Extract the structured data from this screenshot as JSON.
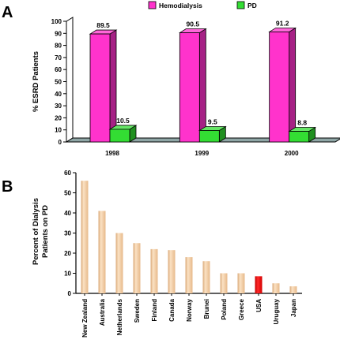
{
  "panels": {
    "a_label": "A",
    "b_label": "B"
  },
  "chart_data": [
    {
      "type": "bar",
      "panel": "A",
      "title": "",
      "xlabel": "",
      "ylabel": "% ESRD Patients",
      "ylim": [
        0,
        100
      ],
      "yticks": [
        0,
        10,
        20,
        30,
        40,
        50,
        60,
        70,
        80,
        90,
        100
      ],
      "categories": [
        "1998",
        "1999",
        "2000"
      ],
      "legend_position": "top",
      "series": [
        {
          "name": "Hemodialysis",
          "color": "#ff33cc",
          "values": [
            89.5,
            90.5,
            91.2
          ],
          "labels": [
            "89.5",
            "90.5",
            "91.2"
          ]
        },
        {
          "name": "PD",
          "color": "#33dd33",
          "values": [
            10.5,
            9.5,
            8.8
          ],
          "labels": [
            "10.5",
            "9.5",
            "8.8"
          ]
        }
      ],
      "floor_color": "#8fa6a6",
      "grid": false
    },
    {
      "type": "bar",
      "panel": "B",
      "title": "",
      "xlabel": "",
      "ylabel": "Percent of Dialysis Patients on PD",
      "ylabel_lines": [
        "Percent of Dialysis",
        "Patients on PD"
      ],
      "ylim": [
        0,
        60
      ],
      "yticks": [
        0,
        10,
        20,
        30,
        40,
        50,
        60
      ],
      "categories": [
        "New Zealand",
        "Australia",
        "Netherlands",
        "Sweden",
        "Finland",
        "Canada",
        "Norway",
        "Brunei",
        "Poland",
        "Greece",
        "USA",
        "Uruguay",
        "Japan"
      ],
      "values": [
        56,
        41,
        30,
        25,
        22,
        21.5,
        18,
        16,
        10,
        10,
        8.5,
        5,
        3.5
      ],
      "bar_color": "#f0c49a",
      "highlight": {
        "category": "USA",
        "color": "#ee1111"
      },
      "grid": false
    }
  ]
}
